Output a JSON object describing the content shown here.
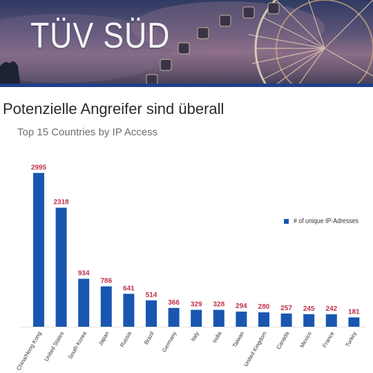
{
  "banner": {
    "title": "TÜV SÜD"
  },
  "headline": "Potenzielle Angreifer sind überall",
  "colors": {
    "bar": "#1a56b0",
    "value_label": "#c0304a",
    "banner_rule": "#1f3f8a"
  },
  "chart_data": {
    "type": "bar",
    "title": "Top 15 Countries by IP Access",
    "xlabel": "",
    "ylabel": "",
    "ylim": [
      0,
      3000
    ],
    "grid": false,
    "legend_position": "right",
    "categories": [
      "China/Hong Kong",
      "United States",
      "South Korea",
      "Japan",
      "Russia",
      "Brazil",
      "Germany",
      "Italy",
      "India",
      "Taiwan",
      "United Kingdom",
      "Canada",
      "Mexico",
      "France",
      "Turkey"
    ],
    "series": [
      {
        "name": "# of unique IP-Adresses",
        "values": [
          2995,
          2318,
          934,
          786,
          641,
          514,
          366,
          329,
          328,
          294,
          280,
          257,
          245,
          242,
          181
        ]
      }
    ]
  }
}
